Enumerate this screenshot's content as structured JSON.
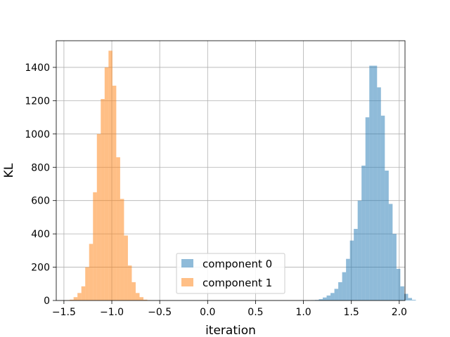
{
  "chart_data": {
    "type": "bar",
    "title": "",
    "xlabel": "iteration",
    "ylabel": "KL",
    "xlim": [
      -1.58,
      2.06
    ],
    "ylim": [
      0,
      1560
    ],
    "xticks": [
      -1.5,
      -1.0,
      -0.5,
      0.0,
      0.5,
      1.0,
      1.5,
      2.0
    ],
    "xtick_labels": [
      "−1.5",
      "−1.0",
      "−0.5",
      "0.0",
      "0.5",
      "1.0",
      "1.5",
      "2.0"
    ],
    "yticks": [
      0,
      200,
      400,
      600,
      800,
      1000,
      1200,
      1400
    ],
    "ytick_labels": [
      "0",
      "200",
      "400",
      "600",
      "800",
      "1000",
      "1200",
      "1400"
    ],
    "grid": true,
    "legend_position": "lower-center",
    "bin_width": 0.0405,
    "series": [
      {
        "name": "component 0",
        "color": "#1f77b4",
        "opacity": 0.5,
        "bin_start": 1.08,
        "counts": [
          2,
          3,
          8,
          18,
          30,
          45,
          70,
          110,
          170,
          250,
          360,
          430,
          600,
          810,
          1100,
          1410,
          1410,
          1280,
          1110,
          780,
          580,
          400,
          190,
          85,
          40,
          15,
          4
        ]
      },
      {
        "name": "component 1",
        "color": "#ff7f0e",
        "opacity": 0.5,
        "bin_start": -1.48,
        "counts": [
          2,
          5,
          20,
          45,
          85,
          200,
          340,
          650,
          1000,
          1210,
          1400,
          1500,
          1290,
          860,
          610,
          390,
          210,
          110,
          45,
          20,
          5,
          2
        ]
      }
    ]
  }
}
